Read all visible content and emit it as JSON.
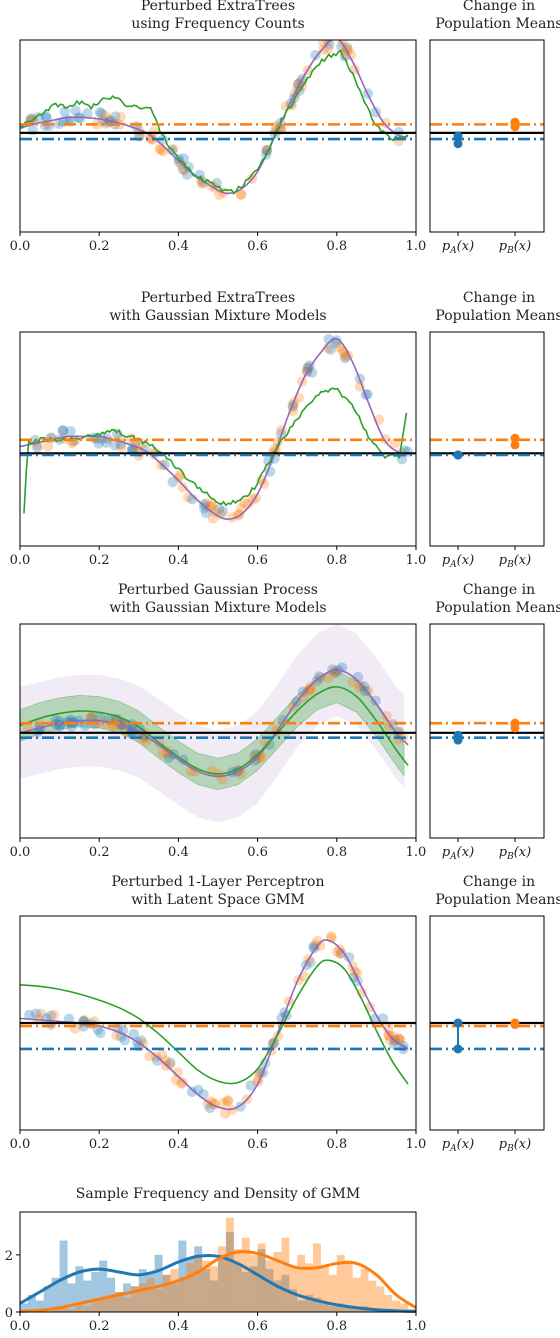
{
  "colors": {
    "blue": "#1f77b4",
    "orange": "#ff7f0e",
    "green": "#2ca02c",
    "purple": "#9467bd",
    "black": "#000000"
  },
  "chart_data": [
    {
      "type": "scatter",
      "title": "Perturbed ExtraTrees\nusing Frequency Counts",
      "xlim": [
        0,
        1
      ],
      "xticks": [
        0.0,
        0.2,
        0.4,
        0.6,
        0.8,
        1.0
      ],
      "xtick_labels": [
        "0.0",
        "0.2",
        "0.4",
        "0.6",
        "0.8",
        "1.0"
      ],
      "ylim": [
        -0.62,
        0.62
      ],
      "hlines": {
        "orange": 0.075,
        "black": 0.02,
        "blue": -0.02
      },
      "curves": {
        "green": {
          "x": [
            0.0,
            0.03,
            0.06,
            0.09,
            0.12,
            0.15,
            0.18,
            0.21,
            0.24,
            0.27,
            0.3,
            0.33,
            0.36,
            0.39,
            0.42,
            0.45,
            0.48,
            0.51,
            0.54,
            0.57,
            0.6,
            0.63,
            0.66,
            0.69,
            0.72,
            0.75,
            0.78,
            0.81,
            0.84,
            0.87,
            0.9,
            0.93,
            0.96,
            0.98
          ],
          "y": [
            0.06,
            0.1,
            0.16,
            0.2,
            0.18,
            0.22,
            0.19,
            0.23,
            0.26,
            0.2,
            0.19,
            0.18,
            0.0,
            -0.12,
            -0.2,
            -0.27,
            -0.3,
            -0.34,
            -0.36,
            -0.3,
            -0.22,
            -0.08,
            0.1,
            0.22,
            0.35,
            0.46,
            0.52,
            0.54,
            0.4,
            0.22,
            0.06,
            -0.01,
            -0.02,
            0.0
          ]
        },
        "purple": {
          "x": [
            0.0,
            0.04,
            0.08,
            0.12,
            0.16,
            0.2,
            0.24,
            0.28,
            0.32,
            0.36,
            0.4,
            0.44,
            0.48,
            0.52,
            0.56,
            0.6,
            0.64,
            0.68,
            0.72,
            0.76,
            0.8,
            0.84,
            0.88,
            0.92,
            0.96,
            0.98
          ],
          "y": [
            0.05,
            0.08,
            0.1,
            0.12,
            0.12,
            0.11,
            0.09,
            0.06,
            0.02,
            -0.06,
            -0.16,
            -0.25,
            -0.32,
            -0.37,
            -0.34,
            -0.23,
            -0.02,
            0.2,
            0.4,
            0.55,
            0.63,
            0.48,
            0.26,
            0.08,
            0.0,
            0.0
          ]
        }
      },
      "side": {
        "xtick_labels": [
          "p_A(x)",
          "p_B(x)"
        ],
        "title": "Change in\nPopulation Means",
        "a": [
          0.0,
          -0.05
        ],
        "b": [
          0.06,
          0.09
        ],
        "black_line": 0.02
      }
    },
    {
      "type": "scatter",
      "title": "Perturbed ExtraTrees\nwith Gaussian Mixture Models",
      "xlim": [
        0,
        1
      ],
      "xticks": [
        0.0,
        0.2,
        0.4,
        0.6,
        0.8,
        1.0
      ],
      "xtick_labels": [
        "0.0",
        "0.2",
        "0.4",
        "0.6",
        "0.8",
        "1.0"
      ],
      "ylim": [
        -0.55,
        0.72
      ],
      "hlines": {
        "orange": 0.08,
        "black": 0.0,
        "blue": -0.01
      },
      "curves": {
        "green": {
          "x": [
            0.01,
            0.02,
            0.05,
            0.08,
            0.12,
            0.16,
            0.2,
            0.24,
            0.28,
            0.32,
            0.36,
            0.4,
            0.44,
            0.48,
            0.52,
            0.56,
            0.6,
            0.64,
            0.68,
            0.72,
            0.76,
            0.8,
            0.84,
            0.88,
            0.92,
            0.96,
            0.98
          ],
          "y": [
            -0.35,
            0.06,
            0.08,
            0.08,
            0.09,
            0.1,
            0.12,
            0.13,
            0.1,
            0.06,
            0.0,
            -0.1,
            -0.18,
            -0.26,
            -0.3,
            -0.28,
            -0.18,
            0.0,
            0.14,
            0.26,
            0.36,
            0.38,
            0.28,
            0.1,
            -0.02,
            -0.01,
            0.3
          ]
        },
        "purple": {
          "x": [
            0.0,
            0.04,
            0.08,
            0.12,
            0.16,
            0.2,
            0.24,
            0.28,
            0.32,
            0.36,
            0.4,
            0.44,
            0.48,
            0.52,
            0.56,
            0.6,
            0.64,
            0.68,
            0.72,
            0.76,
            0.8,
            0.84,
            0.88,
            0.92,
            0.96,
            0.98
          ],
          "y": [
            0.04,
            0.06,
            0.08,
            0.1,
            0.1,
            0.1,
            0.08,
            0.05,
            0.01,
            -0.07,
            -0.16,
            -0.26,
            -0.34,
            -0.39,
            -0.36,
            -0.24,
            -0.02,
            0.24,
            0.46,
            0.6,
            0.68,
            0.54,
            0.3,
            0.08,
            0.0,
            0.0
          ]
        }
      },
      "side": {
        "xtick_labels": [
          "p_A(x)",
          "p_B(x)"
        ],
        "title": "Change in\nPopulation Means",
        "a": [
          -0.01,
          -0.01
        ],
        "b": [
          0.05,
          0.09
        ],
        "black_line": 0.0
      }
    },
    {
      "type": "scatter",
      "title": "Perturbed Gaussian Process\nwith Gaussian Mixture Models",
      "xlim": [
        0,
        1
      ],
      "xticks": [
        0.0,
        0.2,
        0.4,
        0.6,
        0.8,
        1.0
      ],
      "xtick_labels": [
        "0.0",
        "0.2",
        "0.4",
        "0.6",
        "0.8",
        "1.0"
      ],
      "ylim": [
        -0.85,
        0.92
      ],
      "hlines": {
        "orange": 0.1,
        "black": 0.02,
        "blue": -0.02
      },
      "curves": {
        "green": {
          "x": [
            0.0,
            0.05,
            0.1,
            0.15,
            0.2,
            0.25,
            0.3,
            0.35,
            0.4,
            0.45,
            0.5,
            0.55,
            0.6,
            0.65,
            0.7,
            0.75,
            0.8,
            0.85,
            0.9,
            0.95,
            0.98
          ],
          "y": [
            0.08,
            0.14,
            0.18,
            0.2,
            0.19,
            0.15,
            0.07,
            -0.06,
            -0.18,
            -0.28,
            -0.32,
            -0.28,
            -0.16,
            0.02,
            0.2,
            0.34,
            0.4,
            0.32,
            0.12,
            -0.12,
            -0.25
          ]
        },
        "purple": {
          "x": [
            0.0,
            0.05,
            0.1,
            0.15,
            0.2,
            0.25,
            0.3,
            0.35,
            0.4,
            0.45,
            0.5,
            0.55,
            0.6,
            0.65,
            0.7,
            0.75,
            0.8,
            0.85,
            0.9,
            0.95,
            0.98
          ],
          "y": [
            0.02,
            0.06,
            0.1,
            0.12,
            0.12,
            0.09,
            0.03,
            -0.08,
            -0.2,
            -0.3,
            -0.34,
            -0.3,
            -0.18,
            0.04,
            0.28,
            0.46,
            0.54,
            0.46,
            0.26,
            0.02,
            -0.08
          ]
        },
        "green_band_halfwidth": 0.13,
        "purple_band_halfwidth": 0.38
      },
      "side": {
        "xtick_labels": [
          "p_A(x)",
          "p_B(x)"
        ],
        "title": "Change in\nPopulation Means",
        "a": [
          0.0,
          -0.04
        ],
        "b": [
          0.06,
          0.1
        ],
        "black_line": 0.02
      }
    },
    {
      "type": "scatter",
      "title": "Perturbed 1-Layer Perceptron\nwith Latent Space GMM",
      "xlim": [
        0,
        1
      ],
      "xticks": [
        0.0,
        0.2,
        0.4,
        0.6,
        0.8,
        1.0
      ],
      "xtick_labels": [
        "0.0",
        "0.2",
        "0.4",
        "0.6",
        "0.8",
        "1.0"
      ],
      "ylim": [
        -0.65,
        0.75
      ],
      "hlines": {
        "orange": 0.03,
        "black": 0.05,
        "blue": -0.12
      },
      "curves": {
        "green": {
          "x": [
            0.0,
            0.05,
            0.1,
            0.15,
            0.2,
            0.25,
            0.3,
            0.35,
            0.4,
            0.45,
            0.5,
            0.55,
            0.6,
            0.65,
            0.7,
            0.75,
            0.78,
            0.82,
            0.86,
            0.9,
            0.94,
            0.98
          ],
          "y": [
            0.3,
            0.29,
            0.27,
            0.24,
            0.2,
            0.15,
            0.08,
            -0.02,
            -0.14,
            -0.26,
            -0.33,
            -0.34,
            -0.25,
            -0.03,
            0.22,
            0.42,
            0.46,
            0.4,
            0.22,
            0.0,
            -0.2,
            -0.35
          ]
        },
        "purple": {
          "x": [
            0.0,
            0.05,
            0.1,
            0.15,
            0.2,
            0.25,
            0.3,
            0.35,
            0.4,
            0.45,
            0.5,
            0.55,
            0.6,
            0.65,
            0.7,
            0.75,
            0.78,
            0.82,
            0.86,
            0.9,
            0.94,
            0.98
          ],
          "y": [
            0.08,
            0.07,
            0.06,
            0.05,
            0.03,
            -0.01,
            -0.08,
            -0.18,
            -0.3,
            -0.42,
            -0.5,
            -0.5,
            -0.35,
            -0.02,
            0.32,
            0.55,
            0.59,
            0.5,
            0.3,
            0.1,
            -0.05,
            -0.12
          ]
        }
      },
      "side": {
        "xtick_labels": [
          "p_A(x)",
          "p_B(x)"
        ],
        "title": "Change in\nPopulation Means",
        "a": [
          0.05,
          -0.12
        ],
        "b": [
          0.04,
          0.05
        ],
        "black_line": 0.05
      }
    },
    {
      "type": "bar",
      "title": "Sample Frequency and Density of GMM",
      "xlim": [
        0,
        1
      ],
      "xticks": [
        0.0,
        0.2,
        0.4,
        0.6,
        0.8,
        1.0
      ],
      "xtick_labels": [
        "0.0",
        "0.2",
        "0.4",
        "0.6",
        "0.8",
        "1.0"
      ],
      "ylim": [
        0,
        3.5
      ],
      "yticks": [
        0,
        2
      ],
      "ytick_labels": [
        "0",
        "2"
      ],
      "bins": 50,
      "blue_hist": [
        0.3,
        0.6,
        0.4,
        0.9,
        1.2,
        2.5,
        1.0,
        1.6,
        1.1,
        1.4,
        1.8,
        1.2,
        0.7,
        1.0,
        0.9,
        1.5,
        1.4,
        2.0,
        1.3,
        1.0,
        2.5,
        1.9,
        2.3,
        1.5,
        1.1,
        2.0,
        2.8,
        1.7,
        1.4,
        1.6,
        2.2,
        1.5,
        1.1,
        1.3,
        0.8,
        0.4,
        0.6,
        0.5,
        0.3,
        0.2,
        0.3,
        0.2,
        0.1,
        0.2,
        0.1,
        0.0,
        0.1,
        0.0,
        0.0,
        0.0
      ],
      "orange_hist": [
        0.0,
        0.0,
        0.1,
        0.0,
        0.1,
        0.2,
        0.1,
        0.3,
        0.2,
        0.4,
        0.5,
        0.6,
        0.7,
        0.5,
        0.9,
        1.0,
        1.2,
        0.8,
        1.3,
        1.5,
        1.1,
        1.7,
        2.0,
        1.8,
        1.6,
        2.3,
        3.3,
        2.2,
        2.6,
        2.0,
        2.4,
        1.8,
        2.1,
        2.6,
        1.6,
        2.0,
        1.7,
        2.4,
        1.6,
        1.3,
        2.0,
        1.8,
        1.2,
        1.5,
        1.1,
        0.9,
        0.6,
        0.4,
        0.3,
        0.1
      ],
      "density": {
        "blue": {
          "x": [
            0.0,
            0.05,
            0.1,
            0.15,
            0.2,
            0.25,
            0.3,
            0.35,
            0.4,
            0.45,
            0.5,
            0.55,
            0.6,
            0.65,
            0.7,
            0.75,
            0.8,
            0.85,
            0.9,
            0.95,
            1.0
          ],
          "y": [
            0.3,
            0.7,
            1.1,
            1.4,
            1.5,
            1.4,
            1.3,
            1.45,
            1.75,
            1.95,
            1.95,
            1.7,
            1.3,
            0.9,
            0.6,
            0.4,
            0.25,
            0.15,
            0.08,
            0.04,
            0.02
          ]
        },
        "orange": {
          "x": [
            0.0,
            0.05,
            0.1,
            0.15,
            0.2,
            0.25,
            0.3,
            0.35,
            0.4,
            0.45,
            0.5,
            0.55,
            0.6,
            0.65,
            0.7,
            0.75,
            0.8,
            0.85,
            0.9,
            0.95,
            1.0
          ],
          "y": [
            0.02,
            0.06,
            0.15,
            0.3,
            0.45,
            0.6,
            0.75,
            0.9,
            1.1,
            1.4,
            1.85,
            2.1,
            2.05,
            1.8,
            1.55,
            1.55,
            1.7,
            1.7,
            1.3,
            0.6,
            0.15
          ]
        }
      }
    }
  ]
}
